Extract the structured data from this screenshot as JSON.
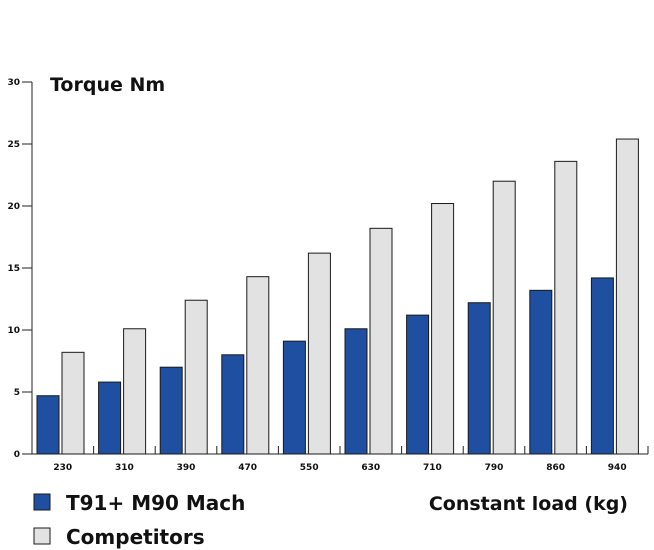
{
  "chart_data": {
    "type": "bar",
    "ylabel": "Torque Nm",
    "xlabel": "Constant load (kg)",
    "categories": [
      "230",
      "310",
      "390",
      "470",
      "550",
      "630",
      "710",
      "790",
      "860",
      "940"
    ],
    "highlight_category": "940",
    "yticks": [
      0,
      5,
      10,
      15,
      20,
      25,
      30
    ],
    "ylim": [
      0,
      30
    ],
    "grid": false,
    "legend_position": "bottom-left",
    "series": [
      {
        "name": "T91+ M90 Mach",
        "color": "#1f4fa0",
        "values": [
          4.7,
          5.8,
          7.0,
          8.0,
          9.1,
          10.1,
          11.2,
          12.2,
          13.2,
          14.2
        ]
      },
      {
        "name": "Competitors",
        "color": "#e2e2e2",
        "values": [
          8.2,
          10.1,
          12.4,
          14.3,
          16.2,
          18.2,
          20.2,
          22.0,
          23.6,
          25.4
        ]
      }
    ],
    "colors": {
      "axis": "#222222",
      "bar_outline": "#1a1a1a",
      "highlight_tick": "#1f4fa0"
    }
  }
}
